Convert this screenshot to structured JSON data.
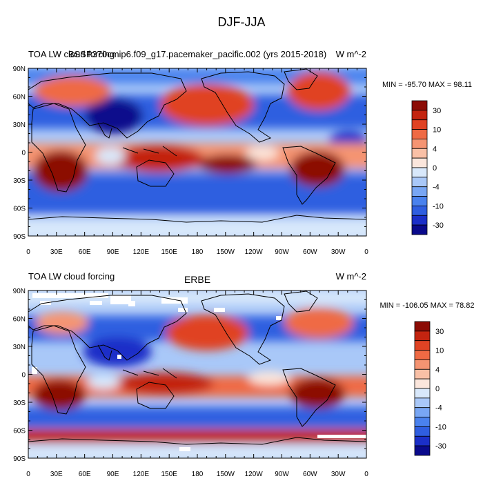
{
  "main_title": "DJF-JJA",
  "lat_labels": [
    "90N",
    "60N",
    "30N",
    "0",
    "30S",
    "60S",
    "90S"
  ],
  "lon_labels": [
    "0",
    "30E",
    "60E",
    "90E",
    "120E",
    "150E",
    "180",
    "150W",
    "120W",
    "90W",
    "60W",
    "30W",
    "0"
  ],
  "panels": [
    {
      "left_title": "TOA LW cloud forcing",
      "center_title": "BSSP370cmip6.f09_g17.pacemaker_pacific.002 (yrs 2015-2018)",
      "units": "W m^-2",
      "stats": "MIN = -95.70 MAX =  98.11",
      "legend_labels": [
        "30",
        "10",
        "4",
        "0",
        "-4",
        "-10",
        "-30"
      ]
    },
    {
      "left_title": "TOA LW cloud forcing",
      "center_title": "ERBE",
      "units": "W m^-2",
      "stats": "MIN = -106.05 MAX =  78.82",
      "legend_labels": [
        "30",
        "10",
        "4",
        "0",
        "-4",
        "-10",
        "-30"
      ]
    }
  ],
  "colors": {
    "palette": [
      "#0a0a8c",
      "#1b2fc8",
      "#2f5ee0",
      "#4a82ee",
      "#78a6f4",
      "#a9c8f8",
      "#d8e8fb",
      "#fbe6dc",
      "#f9c0a6",
      "#f59472",
      "#ef6a44",
      "#e04324",
      "#c32410",
      "#8c0c05"
    ]
  }
}
